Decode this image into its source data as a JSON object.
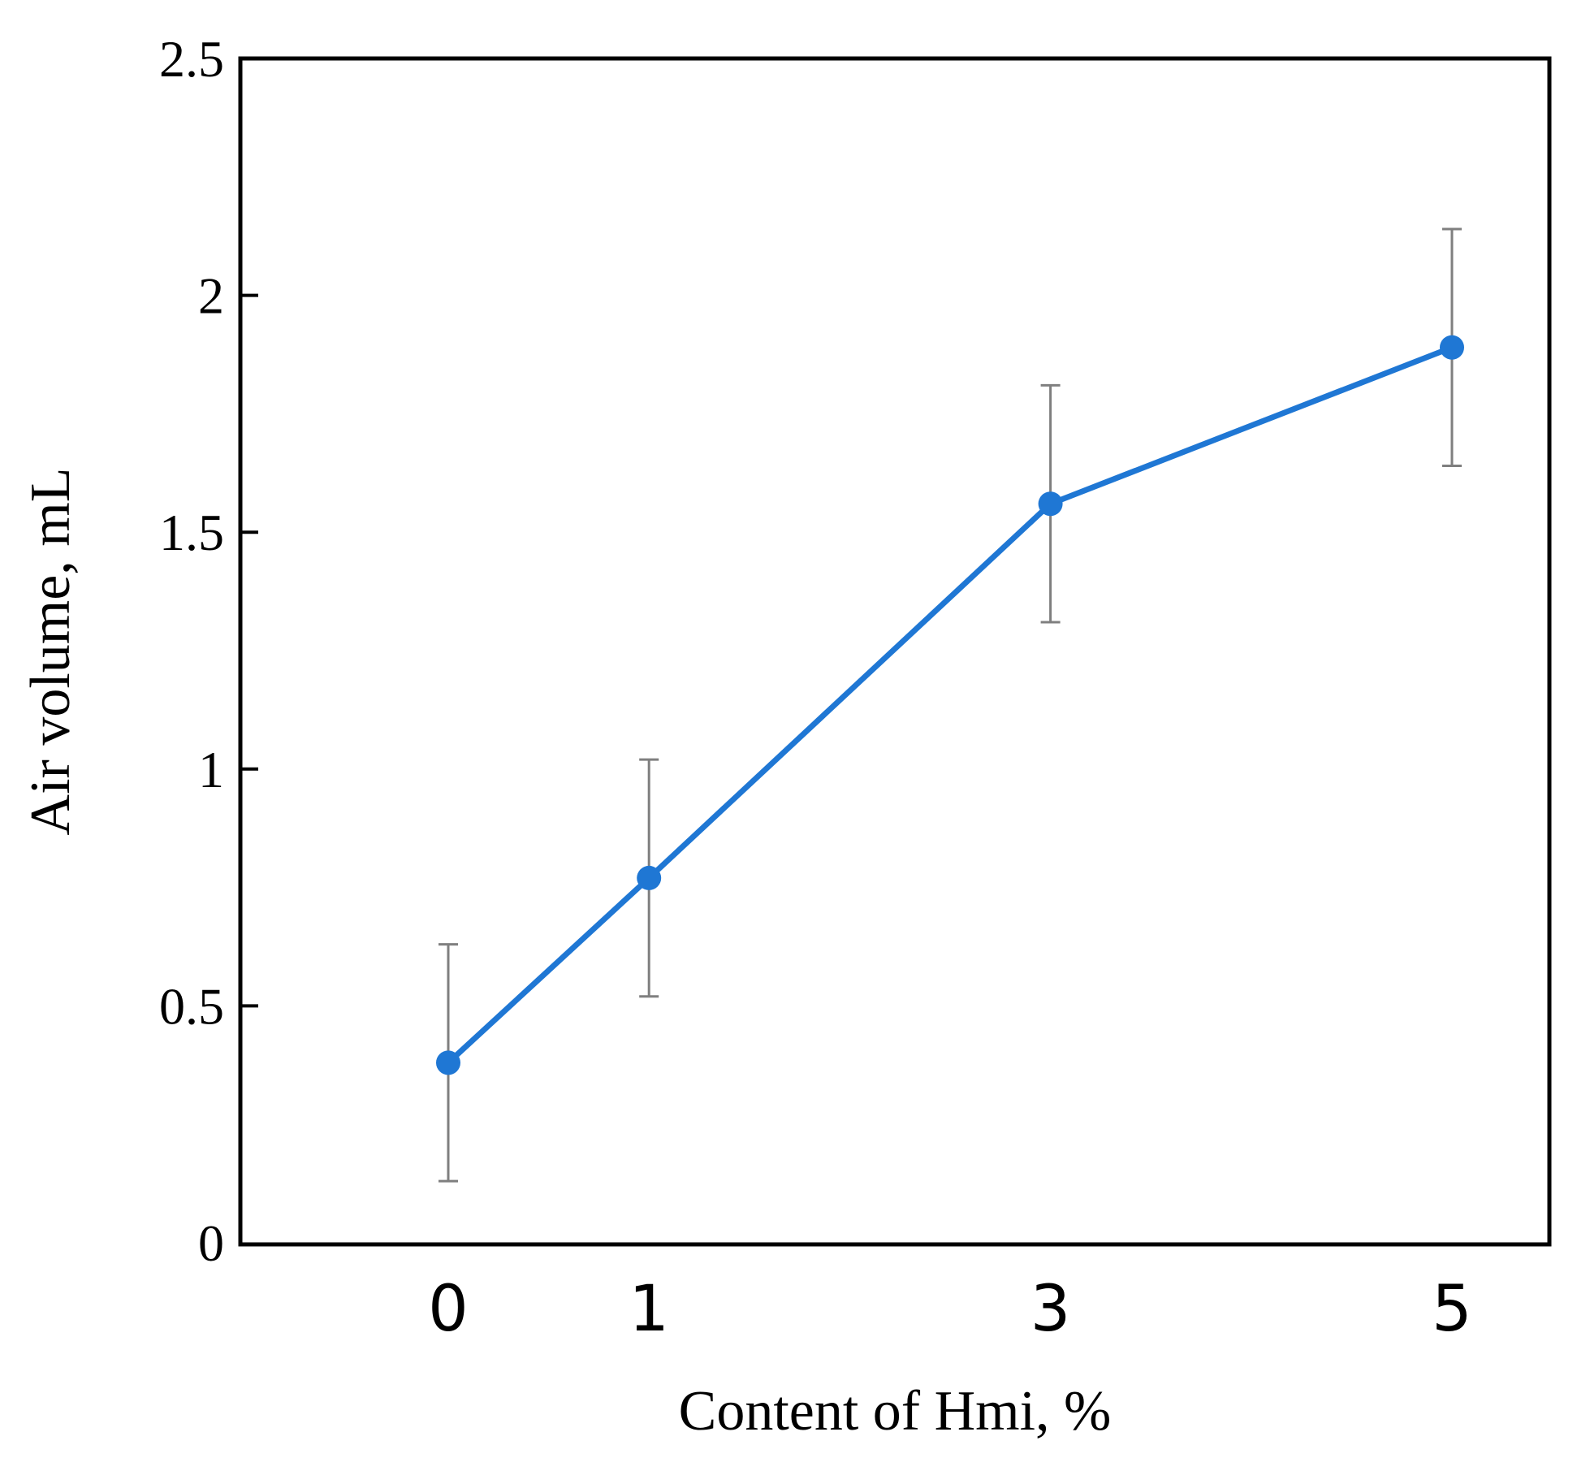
{
  "chart_data": {
    "type": "line",
    "title": "",
    "xlabel": "Content of Hmi, %",
    "ylabel": "Air volume, mL",
    "categories": [
      "0",
      "1",
      "3",
      "5"
    ],
    "x": [
      0,
      1,
      3,
      5
    ],
    "y_ticks": [
      "0",
      "0.5",
      "1",
      "1.5",
      "2",
      "2.5"
    ],
    "ylim": [
      0,
      2.5
    ],
    "series": [
      {
        "values": [
          0.38,
          0.77,
          1.56,
          1.89
        ],
        "error": [
          0.25,
          0.25,
          0.25,
          0.25
        ],
        "color": "#1f77d4"
      }
    ],
    "error_bar_color": "#7f7f7f",
    "axis_color": "#000000",
    "grid": false,
    "legend": "none"
  }
}
